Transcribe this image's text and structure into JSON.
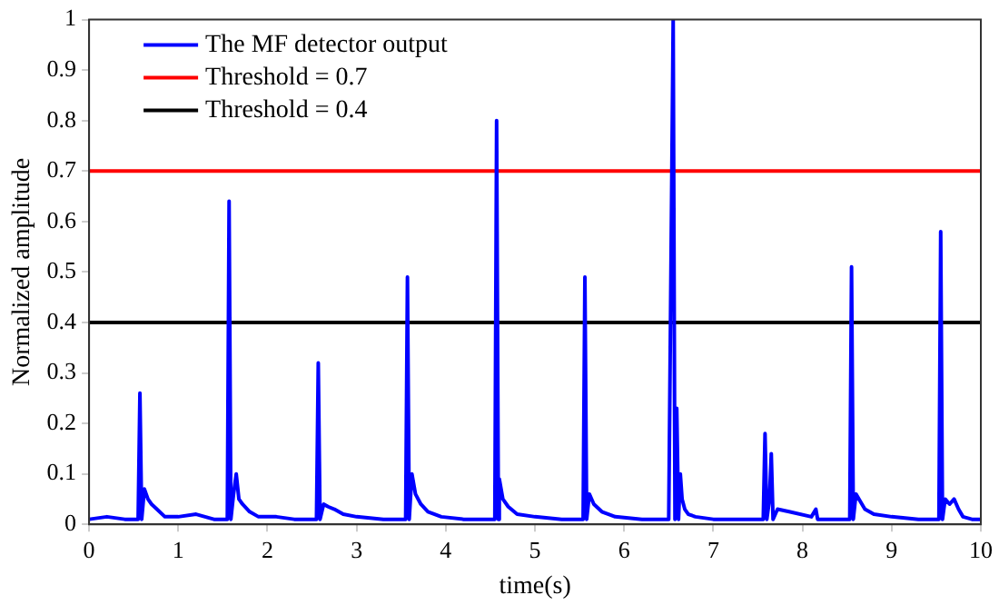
{
  "chart_data": {
    "type": "line",
    "xlabel": "time(s)",
    "ylabel": "Normalized amplitude",
    "xlim": [
      0,
      10
    ],
    "xticks": [
      0,
      1,
      2,
      3,
      4,
      5,
      6,
      7,
      8,
      9,
      10
    ],
    "ylim": [
      0,
      1
    ],
    "yticks": [
      0,
      0.1,
      0.2,
      0.3,
      0.4,
      0.5,
      0.6,
      0.7,
      0.8,
      0.9,
      1
    ],
    "grid": false,
    "legend": "top left",
    "line_style": "solid",
    "marker": "none",
    "series": [
      {
        "name": "The MF detector output",
        "color": "#0000ff",
        "x": [
          0,
          0.2,
          0.4,
          0.55,
          0.57,
          0.59,
          0.62,
          0.66,
          0.7,
          0.76,
          0.85,
          1.0,
          1.2,
          1.4,
          1.55,
          1.57,
          1.59,
          1.62,
          1.65,
          1.68,
          1.72,
          1.8,
          1.9,
          2.1,
          2.3,
          2.55,
          2.57,
          2.59,
          2.63,
          2.68,
          2.75,
          2.85,
          3.0,
          3.3,
          3.55,
          3.57,
          3.59,
          3.62,
          3.66,
          3.72,
          3.8,
          3.95,
          4.2,
          4.45,
          4.55,
          4.57,
          4.59,
          4.6,
          4.64,
          4.7,
          4.8,
          5.0,
          5.3,
          5.54,
          5.56,
          5.58,
          5.61,
          5.66,
          5.75,
          5.9,
          6.2,
          6.5,
          6.55,
          6.57,
          6.59,
          6.61,
          6.63,
          6.65,
          6.68,
          6.72,
          6.8,
          7.0,
          7.3,
          7.56,
          7.58,
          7.6,
          7.63,
          7.65,
          7.67,
          7.72,
          7.85,
          8.1,
          8.15,
          8.17,
          8.3,
          8.53,
          8.55,
          8.57,
          8.6,
          8.65,
          8.7,
          8.8,
          9.0,
          9.3,
          9.53,
          9.55,
          9.57,
          9.6,
          9.65,
          9.7,
          9.75,
          9.8,
          9.9,
          10
        ],
        "values": [
          0.01,
          0.015,
          0.01,
          0.01,
          0.26,
          0.01,
          0.07,
          0.05,
          0.04,
          0.03,
          0.015,
          0.015,
          0.02,
          0.01,
          0.01,
          0.64,
          0.01,
          0.06,
          0.1,
          0.05,
          0.04,
          0.025,
          0.015,
          0.015,
          0.01,
          0.01,
          0.32,
          0.01,
          0.04,
          0.035,
          0.03,
          0.02,
          0.015,
          0.01,
          0.01,
          0.49,
          0.01,
          0.1,
          0.06,
          0.04,
          0.025,
          0.015,
          0.01,
          0.01,
          0.01,
          0.8,
          0.01,
          0.09,
          0.05,
          0.035,
          0.02,
          0.015,
          0.01,
          0.01,
          0.49,
          0.01,
          0.06,
          0.04,
          0.025,
          0.015,
          0.01,
          0.01,
          1.0,
          0.01,
          0.23,
          0.01,
          0.1,
          0.05,
          0.03,
          0.02,
          0.015,
          0.01,
          0.01,
          0.01,
          0.18,
          0.01,
          0.05,
          0.14,
          0.01,
          0.03,
          0.025,
          0.015,
          0.03,
          0.01,
          0.01,
          0.01,
          0.51,
          0.01,
          0.06,
          0.045,
          0.03,
          0.02,
          0.015,
          0.01,
          0.01,
          0.58,
          0.01,
          0.05,
          0.04,
          0.05,
          0.03,
          0.015,
          0.01,
          0.01
        ]
      },
      {
        "name": "Threshold = 0.7",
        "color": "#ff0000",
        "x": [
          0,
          10
        ],
        "values": [
          0.7,
          0.7
        ]
      },
      {
        "name": "Threshold = 0.4",
        "color": "#000000",
        "x": [
          0,
          10
        ],
        "values": [
          0.4,
          0.4
        ]
      }
    ]
  }
}
